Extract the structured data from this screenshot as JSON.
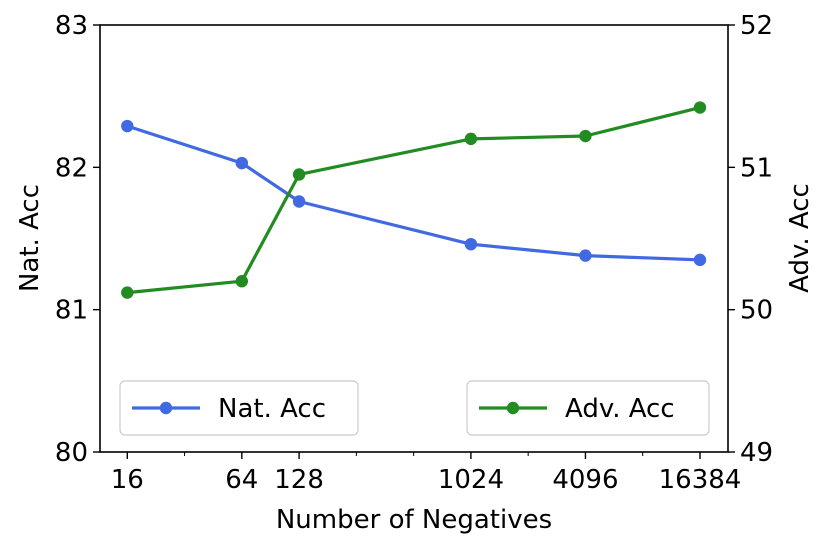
{
  "chart_data": {
    "type": "line",
    "xlabel": "Number of Negatives",
    "ylabel_left": "Nat. Acc",
    "ylabel_right": "Adv. Acc",
    "x_scale": "log2",
    "x": [
      16,
      64,
      128,
      1024,
      4096,
      16384
    ],
    "x_tick_labels": [
      "16",
      "64",
      "128",
      "1024",
      "4096",
      "16384"
    ],
    "xlim": [
      11.5,
      23000
    ],
    "ylim_left": [
      80,
      83
    ],
    "yticks_left": [
      "80",
      "81",
      "82",
      "83"
    ],
    "ylim_right": [
      49,
      52
    ],
    "yticks_right": [
      "49",
      "50",
      "51",
      "52"
    ],
    "grid": false,
    "series": [
      {
        "name": "Nat. Acc",
        "axis": "left",
        "color": "#4169e1",
        "marker": "circle",
        "values": [
          82.29,
          82.03,
          81.76,
          81.46,
          81.38,
          81.35
        ]
      },
      {
        "name": "Adv. Acc",
        "axis": "right",
        "color": "#228b22",
        "marker": "circle",
        "values": [
          50.12,
          50.2,
          50.95,
          51.2,
          51.22,
          51.42
        ]
      }
    ],
    "legends": [
      {
        "series": "Nat. Acc",
        "placement": "lower-left"
      },
      {
        "series": "Adv. Acc",
        "placement": "lower-right"
      }
    ]
  }
}
